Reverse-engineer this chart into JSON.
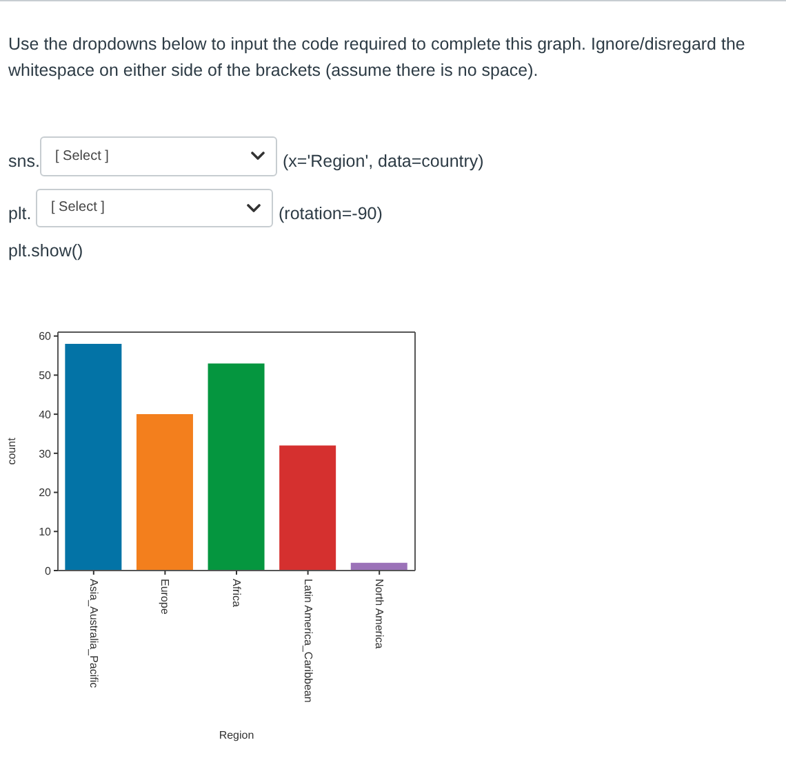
{
  "chart_data": {
    "type": "bar",
    "title": "Use the dropdowns below to input the code required to complete this graph. Ignore/disregard the whitespace on either side of the brackets (assume there is no space).",
    "annotations": [
      "sns.",
      "[ Select ]",
      "(x='Region', data=country)",
      "plt.",
      "[ Select ]",
      "(rotation=-90)",
      "plt.show()"
    ],
    "categories": [
      "Asia_Australia_Pacific",
      "Europe",
      "Africa",
      "Latin America_Caribbean",
      "North America"
    ],
    "values": [
      58,
      40,
      53,
      32,
      2
    ],
    "colors": [
      "#0373a6",
      "#f37f1d",
      "#05963f",
      "#d5302f",
      "#9b72b8"
    ],
    "xlabel": "Region",
    "ylabel": "count",
    "ylim": [
      0,
      61
    ],
    "yticks": [
      0,
      10,
      20,
      30,
      40,
      50,
      60
    ]
  }
}
